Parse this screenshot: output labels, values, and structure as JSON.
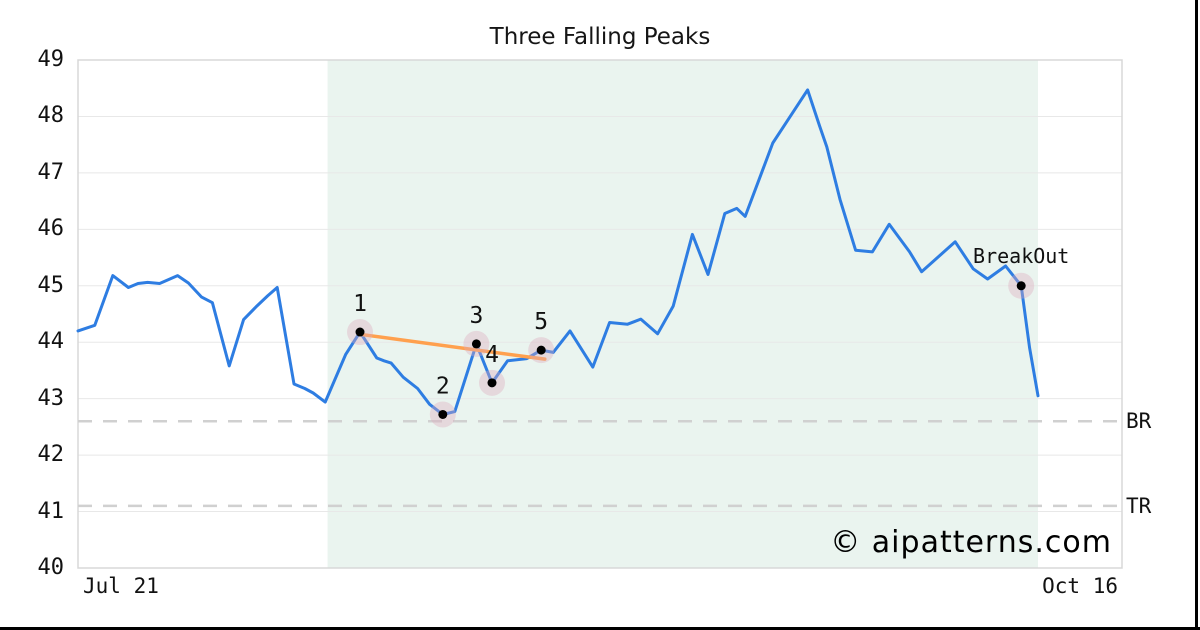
{
  "card": {
    "background": "#ffffff",
    "border_color": "#000000"
  },
  "watermark": {
    "text": "© aipatterns.com",
    "color": "#c9cdf0"
  },
  "chart_data": {
    "type": "line",
    "title": "Three Falling Peaks",
    "xlabel": "",
    "ylabel": "",
    "grid": true,
    "legend_position": "none",
    "x_axis": {
      "xlim": [
        0,
        87
      ],
      "start_label": "Jul 21",
      "end_label": "Oct 16"
    },
    "y_axis": {
      "ylim": [
        40,
        49
      ],
      "ticks": [
        40,
        41,
        42,
        43,
        44,
        45,
        46,
        47,
        48,
        49
      ]
    },
    "colors": {
      "price_line": "#2e7de2",
      "trendline": "#ffa04e",
      "pattern_zone": "#eaf4ef",
      "marker_halo": "rgba(220,170,188,0.38)",
      "marker_dot": "#000000",
      "gridline": "#e8e8e8",
      "spine": "#d8d8d8",
      "level_dash": "#d0d0d0"
    },
    "series": [
      {
        "name": "price",
        "points": [
          [
            0.0,
            44.2
          ],
          [
            1.4,
            44.3
          ],
          [
            2.9,
            45.18
          ],
          [
            4.2,
            44.97
          ],
          [
            5.0,
            45.04
          ],
          [
            5.8,
            45.06
          ],
          [
            6.8,
            45.04
          ],
          [
            8.3,
            45.18
          ],
          [
            9.2,
            45.05
          ],
          [
            10.3,
            44.8
          ],
          [
            11.2,
            44.7
          ],
          [
            12.6,
            43.58
          ],
          [
            13.8,
            44.4
          ],
          [
            14.9,
            44.64
          ],
          [
            15.8,
            44.82
          ],
          [
            16.6,
            44.97
          ],
          [
            18.0,
            43.26
          ],
          [
            18.9,
            43.18
          ],
          [
            19.6,
            43.1
          ],
          [
            20.6,
            42.94
          ],
          [
            22.3,
            43.78
          ],
          [
            23.5,
            44.18
          ],
          [
            24.9,
            43.72
          ],
          [
            25.5,
            43.67
          ],
          [
            26.1,
            43.63
          ],
          [
            27.1,
            43.38
          ],
          [
            28.3,
            43.18
          ],
          [
            29.3,
            42.9
          ],
          [
            30.4,
            42.72
          ],
          [
            31.4,
            42.77
          ],
          [
            33.2,
            43.97
          ],
          [
            34.5,
            43.28
          ],
          [
            35.8,
            43.67
          ],
          [
            37.4,
            43.71
          ],
          [
            38.6,
            43.86
          ],
          [
            39.6,
            43.82
          ],
          [
            41.0,
            44.2
          ],
          [
            42.9,
            43.56
          ],
          [
            44.3,
            44.35
          ],
          [
            45.8,
            44.32
          ],
          [
            46.9,
            44.41
          ],
          [
            48.3,
            44.15
          ],
          [
            49.6,
            44.64
          ],
          [
            51.2,
            45.91
          ],
          [
            52.5,
            45.2
          ],
          [
            53.9,
            46.28
          ],
          [
            54.9,
            46.37
          ],
          [
            55.6,
            46.23
          ],
          [
            57.9,
            47.53
          ],
          [
            60.8,
            48.47
          ],
          [
            61.8,
            47.83
          ],
          [
            62.4,
            47.46
          ],
          [
            63.5,
            46.53
          ],
          [
            64.8,
            45.63
          ],
          [
            66.2,
            45.6
          ],
          [
            67.6,
            46.09
          ],
          [
            69.3,
            45.6
          ],
          [
            70.3,
            45.25
          ],
          [
            73.1,
            45.78
          ],
          [
            74.6,
            45.3
          ],
          [
            75.8,
            45.12
          ],
          [
            77.3,
            45.35
          ],
          [
            78.6,
            45.0
          ],
          [
            79.3,
            43.9
          ],
          [
            80.0,
            43.05
          ]
        ]
      }
    ],
    "pattern_zone": {
      "x_start": 20.8,
      "x_end": 80.0
    },
    "trendline": {
      "from": [
        23.5,
        44.14
      ],
      "to": [
        38.9,
        43.7
      ]
    },
    "markers": [
      {
        "label": "1",
        "x": 23.5,
        "value": 44.18
      },
      {
        "label": "2",
        "x": 30.4,
        "value": 42.72
      },
      {
        "label": "3",
        "x": 33.2,
        "value": 43.97
      },
      {
        "label": "4",
        "x": 34.5,
        "value": 43.28
      },
      {
        "label": "5",
        "x": 38.6,
        "value": 43.86
      }
    ],
    "breakout": {
      "label": "BreakOut",
      "x": 78.6,
      "value": 45.0
    },
    "levels": [
      {
        "label": "BR",
        "value": 42.6
      },
      {
        "label": "TR",
        "value": 41.1
      }
    ]
  }
}
